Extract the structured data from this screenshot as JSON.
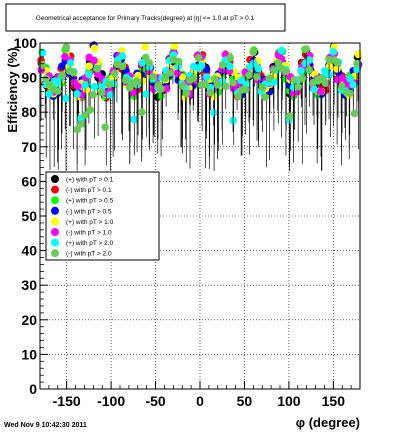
{
  "chart_data": {
    "type": "scatter",
    "title": "Geometrical acceptance for Primary Tracks(degree) at |η| <= 1.0 at pT > 0.1",
    "xlabel": "φ (degree)",
    "ylabel": "Efficiency (%)",
    "xlim": [
      -180,
      180
    ],
    "ylim": [
      0,
      100
    ],
    "xticks": [
      -150,
      -100,
      -50,
      0,
      50,
      100,
      150
    ],
    "yticks": [
      0,
      10,
      20,
      30,
      40,
      50,
      60,
      70,
      80,
      90,
      100
    ],
    "grid": true,
    "legend_position": "left-middle",
    "series": [
      {
        "name": "(+) with pT > 0.1",
        "color": "#000000"
      },
      {
        "name": "(-) with pT > 0.1",
        "color": "#ff0000"
      },
      {
        "name": "(+) with pT > 0.5",
        "color": "#00ff00"
      },
      {
        "name": "(-) with pT > 0.5",
        "color": "#0000ff"
      },
      {
        "name": "(+) with pT > 1.0",
        "color": "#ffff00"
      },
      {
        "name": "(-) with pT > 1.0",
        "color": "#ff00ff"
      },
      {
        "name": "(+) with pT > 2.0",
        "color": "#00ffff"
      },
      {
        "name": "(-) with pT > 2.0",
        "color": "#66cc55"
      }
    ]
  },
  "timestamp": "Wed Nov  9 10:42:30 2011"
}
